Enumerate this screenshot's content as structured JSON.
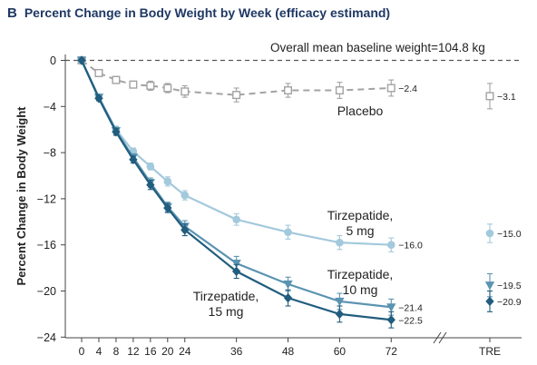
{
  "panel_letter": "B",
  "chart_data": {
    "type": "line",
    "title": "Percent Change in Body Weight by Week (efficacy estimand)",
    "annotation": "Overall mean baseline weight=104.8 kg",
    "ylabel": "Percent Change in Body Weight",
    "xlabel": "",
    "ylim": [
      -24,
      0
    ],
    "yticks": [
      0,
      -4,
      -8,
      -12,
      -16,
      -20,
      -24
    ],
    "xticks": [
      0,
      4,
      8,
      12,
      16,
      20,
      24,
      36,
      48,
      60,
      72
    ],
    "extra_category": "TRE",
    "grid": false,
    "baseline_dashed": true,
    "series": [
      {
        "name": "Placebo",
        "label_lines": [
          "Placebo"
        ],
        "color": "#a3a3a3",
        "marker": "square-open",
        "line": "dashed",
        "x": [
          0,
          4,
          8,
          12,
          16,
          20,
          24,
          36,
          48,
          60,
          72
        ],
        "y": [
          0,
          -1.1,
          -1.7,
          -2.1,
          -2.2,
          -2.4,
          -2.7,
          -3.0,
          -2.6,
          -2.6,
          -2.4
        ],
        "err": [
          0,
          0.3,
          0.3,
          0.3,
          0.4,
          0.4,
          0.5,
          0.6,
          0.6,
          0.7,
          0.7
        ],
        "end_label": "−2.4",
        "tre": -3.1,
        "tre_err": 1.1,
        "tre_label": "−3.1"
      },
      {
        "name": "Tirzepatide, 5 mg",
        "label_lines": [
          "Tirzepatide,",
          "5 mg"
        ],
        "color": "#a3c9dc",
        "marker": "circle",
        "line": "solid",
        "x": [
          0,
          4,
          8,
          12,
          16,
          20,
          24,
          36,
          48,
          60,
          72
        ],
        "y": [
          0,
          -3.2,
          -6.0,
          -7.9,
          -9.2,
          -10.5,
          -11.7,
          -13.8,
          -14.9,
          -15.8,
          -16.0
        ],
        "err": [
          0,
          0.2,
          0.3,
          0.3,
          0.3,
          0.4,
          0.4,
          0.5,
          0.6,
          0.6,
          0.6
        ],
        "end_label": "−16.0",
        "tre": -15.0,
        "tre_err": 0.8,
        "tre_label": "−15.0"
      },
      {
        "name": "Tirzepatide, 10 mg",
        "label_lines": [
          "Tirzepatide,",
          "10 mg"
        ],
        "color": "#5b94b1",
        "marker": "triangle-down",
        "line": "solid",
        "x": [
          0,
          4,
          8,
          12,
          16,
          20,
          24,
          36,
          48,
          60,
          72
        ],
        "y": [
          0,
          -3.2,
          -6.1,
          -8.4,
          -10.6,
          -12.7,
          -14.4,
          -17.6,
          -19.4,
          -20.9,
          -21.4
        ],
        "err": [
          0,
          0.2,
          0.3,
          0.3,
          0.4,
          0.4,
          0.5,
          0.6,
          0.6,
          0.7,
          0.7
        ],
        "end_label": "−21.4",
        "tre": -19.5,
        "tre_err": 1.0,
        "tre_label": "−19.5"
      },
      {
        "name": "Tirzepatide, 15 mg",
        "label_lines": [
          "Tirzepatide,",
          "15 mg"
        ],
        "color": "#215d7e",
        "marker": "diamond",
        "line": "solid",
        "x": [
          0,
          4,
          8,
          12,
          16,
          20,
          24,
          36,
          48,
          60,
          72
        ],
        "y": [
          0,
          -3.3,
          -6.2,
          -8.6,
          -10.8,
          -12.8,
          -14.7,
          -18.3,
          -20.6,
          -22.0,
          -22.5
        ],
        "err": [
          0,
          0.2,
          0.3,
          0.3,
          0.4,
          0.4,
          0.5,
          0.6,
          0.7,
          0.7,
          0.7
        ],
        "end_label": "−22.5",
        "tre": -20.9,
        "tre_err": 0.9,
        "tre_label": "−20.9"
      }
    ]
  }
}
